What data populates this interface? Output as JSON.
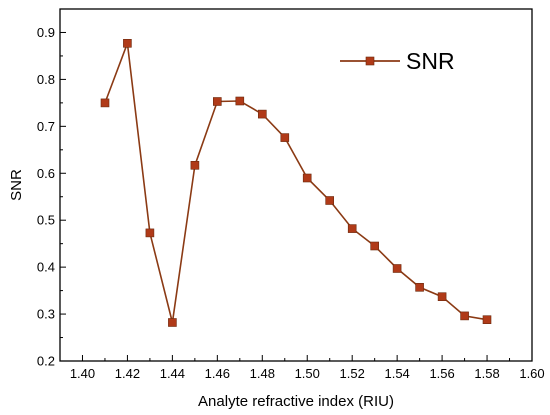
{
  "chart_data": {
    "type": "line",
    "xlabel": "Analyte refractive index (RIU)",
    "ylabel": "SNR",
    "xlim": [
      1.39,
      1.6
    ],
    "ylim": [
      0.2,
      0.95
    ],
    "x_ticks": [
      "1.40",
      "1.42",
      "1.44",
      "1.46",
      "1.48",
      "1.50",
      "1.52",
      "1.54",
      "1.56",
      "1.58",
      "1.60"
    ],
    "y_ticks": [
      "0.2",
      "0.3",
      "0.4",
      "0.5",
      "0.6",
      "0.7",
      "0.8",
      "0.9"
    ],
    "grid": false,
    "legend_position": "top-right",
    "series": [
      {
        "name": "SNR",
        "color": "#8B3A14",
        "marker_color": "#B03A18",
        "marker": "square",
        "x": [
          1.41,
          1.42,
          1.43,
          1.44,
          1.45,
          1.46,
          1.47,
          1.48,
          1.49,
          1.5,
          1.51,
          1.52,
          1.53,
          1.54,
          1.55,
          1.56,
          1.57,
          1.58
        ],
        "y": [
          0.75,
          0.877,
          0.473,
          0.282,
          0.617,
          0.753,
          0.754,
          0.726,
          0.676,
          0.59,
          0.542,
          0.482,
          0.445,
          0.397,
          0.357,
          0.337,
          0.296,
          0.288
        ]
      }
    ]
  }
}
